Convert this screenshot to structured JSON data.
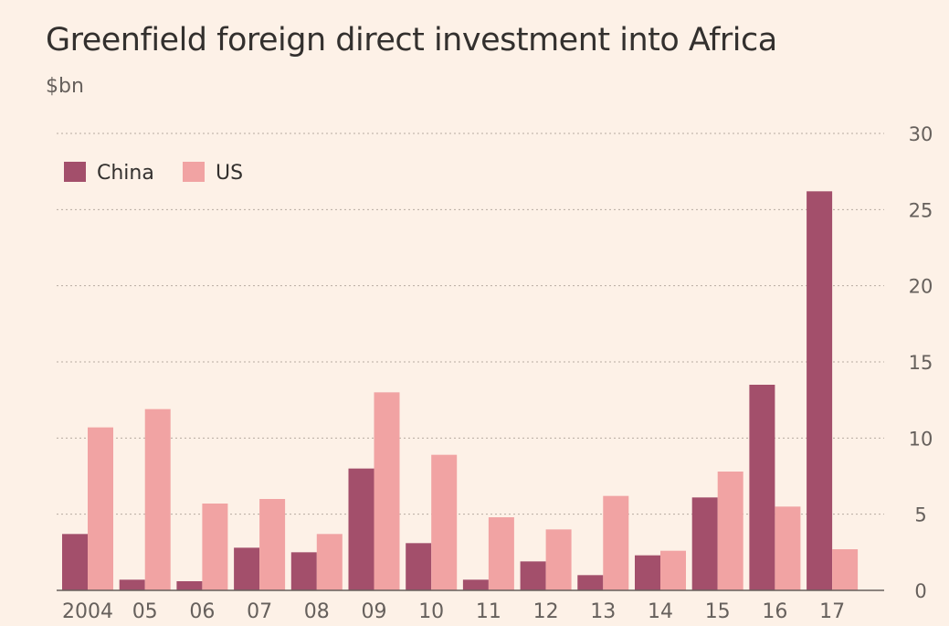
{
  "chart_data": {
    "type": "bar",
    "title": "Greenfield foreign direct investment into Africa",
    "subtitle": "$bn",
    "categories": [
      "2004",
      "05",
      "06",
      "07",
      "08",
      "09",
      "10",
      "11",
      "12",
      "13",
      "14",
      "15",
      "16",
      "17"
    ],
    "series": [
      {
        "name": "China",
        "color": "#a34f6b",
        "values": [
          3.7,
          0.7,
          0.6,
          2.8,
          2.5,
          8.0,
          3.1,
          0.7,
          1.9,
          1.0,
          2.3,
          6.1,
          13.5,
          26.2
        ]
      },
      {
        "name": "US",
        "color": "#f1a3a3",
        "values": [
          10.7,
          11.9,
          5.7,
          6.0,
          3.7,
          13.0,
          8.9,
          4.8,
          4.0,
          6.2,
          2.6,
          7.8,
          5.5,
          2.7
        ]
      }
    ],
    "ylim": [
      0,
      30
    ],
    "yticks": [
      0,
      5,
      10,
      15,
      20,
      25,
      30
    ],
    "y_axis_side": "right",
    "grid": true,
    "legend_position": "top-left"
  }
}
